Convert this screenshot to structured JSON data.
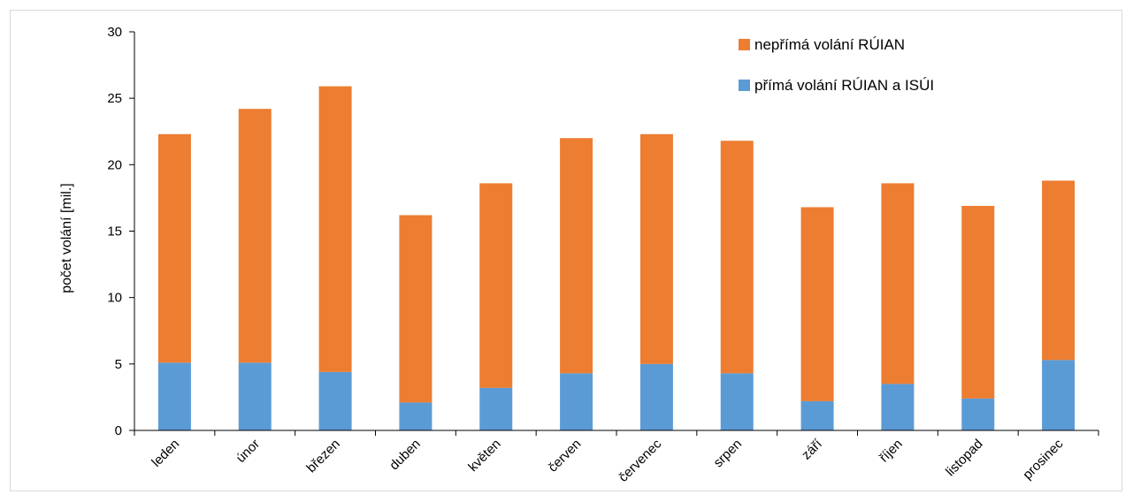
{
  "chart_data": {
    "type": "bar",
    "stacked": true,
    "categories": [
      "leden",
      "únor",
      "březen",
      "duben",
      "květen",
      "červen",
      "červenec",
      "srpen",
      "září",
      "říjen",
      "listopad",
      "prosinec"
    ],
    "series": [
      {
        "name": "přímá volání RÚIAN a ISÚI",
        "color": "#5b9bd5",
        "values": [
          5.1,
          5.1,
          4.4,
          2.1,
          3.2,
          4.3,
          5.0,
          4.3,
          2.2,
          3.5,
          2.4,
          5.3
        ]
      },
      {
        "name": "nepřímá volání RÚIAN",
        "color": "#ed7d31",
        "values": [
          17.2,
          19.1,
          21.5,
          14.1,
          15.4,
          17.7,
          17.3,
          17.5,
          14.6,
          15.1,
          14.5,
          13.5
        ]
      }
    ],
    "title": "",
    "xlabel": "",
    "ylabel": "počet volání [mil.]",
    "ylim": [
      0,
      30
    ],
    "yticks": [
      0,
      5,
      10,
      15,
      20,
      25,
      30
    ],
    "grid": false,
    "legend_position": "top-right"
  }
}
